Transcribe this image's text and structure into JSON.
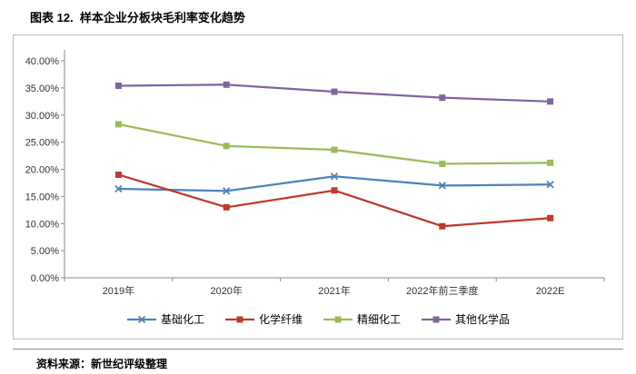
{
  "page": {
    "title": "图表 12.  样本企业分板块毛利率变化趋势",
    "source": "资料来源：新世纪评级整理"
  },
  "chart_data": {
    "type": "line",
    "title": "样本企业分板块毛利率变化趋势",
    "categories": [
      "2019年",
      "2020年",
      "2021年",
      "2022年前三季度",
      "2022E"
    ],
    "series": [
      {
        "name": "基础化工",
        "color": "#4F81BD",
        "marker": "x",
        "values": [
          16.4,
          16.0,
          18.7,
          17.0,
          17.2
        ]
      },
      {
        "name": "化学纤维",
        "color": "#C0392B",
        "marker": "square",
        "values": [
          19.0,
          13.0,
          16.1,
          9.5,
          11.0
        ]
      },
      {
        "name": "精细化工",
        "color": "#9BBB59",
        "marker": "square",
        "values": [
          28.3,
          24.3,
          23.6,
          21.0,
          21.2
        ]
      },
      {
        "name": "其他化学品",
        "color": "#8064A2",
        "marker": "square",
        "values": [
          35.4,
          35.6,
          34.3,
          33.2,
          32.5
        ]
      }
    ],
    "xlabel": "",
    "ylabel": "",
    "ylim": [
      0,
      40
    ],
    "ytick_step": 5,
    "ytick_format": "0.00%",
    "grid": false,
    "legend_position": "bottom"
  }
}
